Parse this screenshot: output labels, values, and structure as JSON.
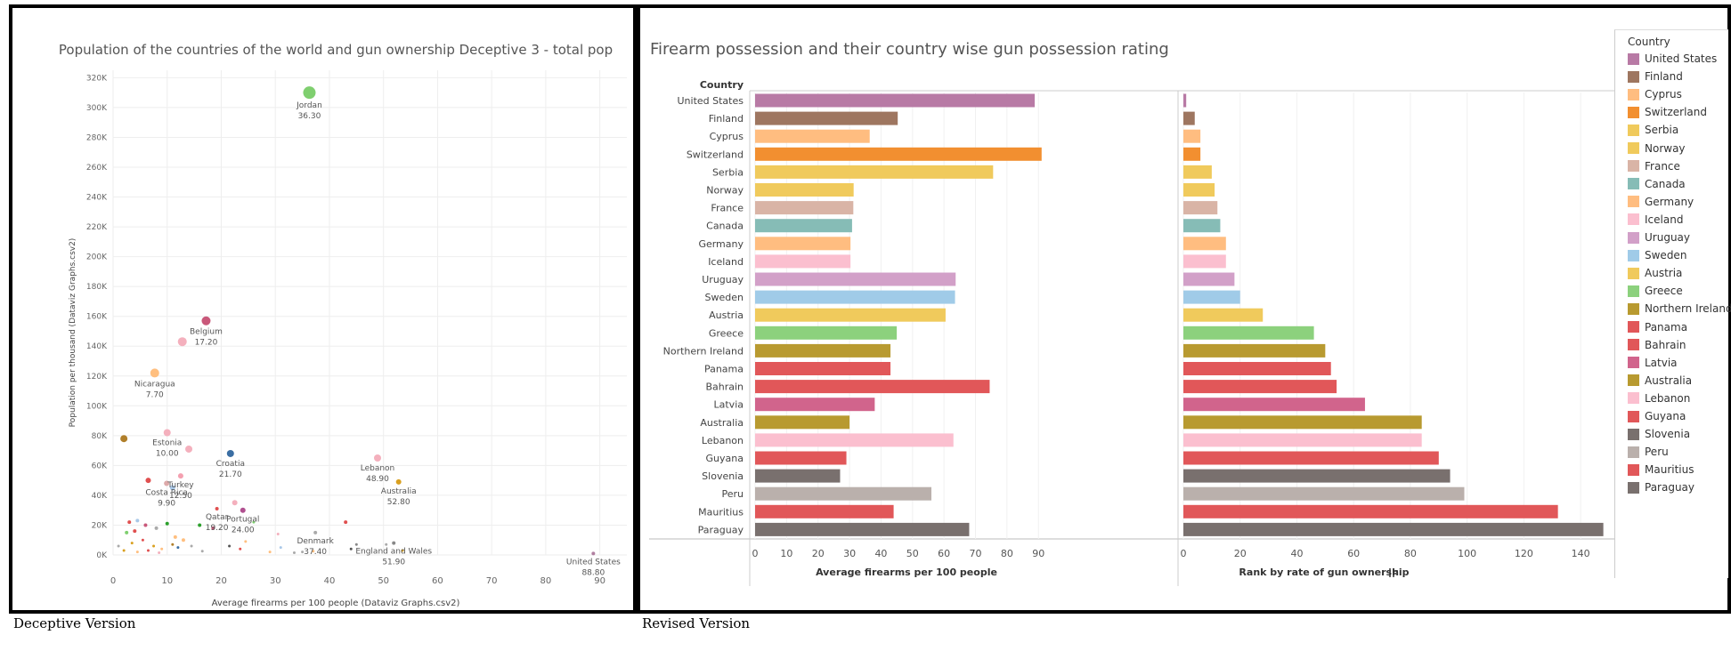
{
  "captions": {
    "left": "Deceptive Version",
    "right": "Revised Version"
  },
  "colors": {
    "grid": "#eeeeee",
    "axis_text": "#666666",
    "label_text": "#555555"
  },
  "chart_data": [
    {
      "type": "scatter",
      "title": "Population of the countries of the world and gun ownership Deceptive 3 - total pop",
      "xlabel": "Average firearms per 100 people (Dataviz Graphs.csv2)",
      "ylabel": "Population per thousand (Dataviz Graphs.csv2)",
      "xlim": [
        0,
        95
      ],
      "ylim": [
        0,
        325000
      ],
      "x_ticks": [
        0,
        10,
        20,
        30,
        40,
        50,
        60,
        70,
        80,
        90
      ],
      "x_tick_labels": [
        "0",
        "10",
        "20",
        "30",
        "40",
        "50",
        "60",
        "70",
        "80",
        "90"
      ],
      "y_ticks": [
        0,
        20000,
        40000,
        60000,
        80000,
        100000,
        120000,
        140000,
        160000,
        180000,
        200000,
        220000,
        240000,
        260000,
        280000,
        300000,
        320000
      ],
      "y_tick_labels": [
        "0K",
        "20K",
        "40K",
        "60K",
        "80K",
        "100K",
        "120K",
        "140K",
        "160K",
        "180K",
        "200K",
        "220K",
        "240K",
        "260K",
        "280K",
        "300K",
        "320K"
      ],
      "grid": true,
      "points": [
        {
          "x": 36.3,
          "y": 310000,
          "r": 7,
          "color": "#7fcf6f",
          "label": "Jordan",
          "value": "36.30"
        },
        {
          "x": 17.2,
          "y": 157000,
          "r": 5,
          "color": "#c9587a",
          "label": "Belgium",
          "value": "17.20"
        },
        {
          "x": 12.8,
          "y": 143000,
          "r": 5,
          "color": "#f4b0bd"
        },
        {
          "x": 7.7,
          "y": 122000,
          "r": 5,
          "color": "#ffbf7f",
          "label": "Nicaragua",
          "value": "7.70"
        },
        {
          "x": 2.0,
          "y": 78000,
          "r": 4,
          "color": "#b07f2a"
        },
        {
          "x": 10.0,
          "y": 82000,
          "r": 4,
          "color": "#f4b0bd",
          "label": "Estonia",
          "value": "10.00"
        },
        {
          "x": 14.0,
          "y": 71000,
          "r": 4,
          "color": "#f4b0bd"
        },
        {
          "x": 12.5,
          "y": 53000,
          "r": 3,
          "color": "#f4a0b0",
          "label": "Turkey",
          "value": "12.50"
        },
        {
          "x": 21.7,
          "y": 68000,
          "r": 4,
          "color": "#3b6ea3",
          "label": "Croatia",
          "value": "21.70"
        },
        {
          "x": 6.5,
          "y": 50000,
          "r": 3,
          "color": "#e05050"
        },
        {
          "x": 9.9,
          "y": 48000,
          "r": 3,
          "color": "#ddaaaa",
          "label": "Costa Rica",
          "value": "9.90"
        },
        {
          "x": 11.0,
          "y": 45000,
          "r": 3,
          "color": "#a9c8e8"
        },
        {
          "x": 48.9,
          "y": 65000,
          "r": 4,
          "color": "#f4b0bd",
          "label": "Lebanon",
          "value": "48.90"
        },
        {
          "x": 52.8,
          "y": 49000,
          "r": 3,
          "color": "#d9a020",
          "label": "Australia",
          "value": "52.80"
        },
        {
          "x": 19.2,
          "y": 31000,
          "r": 2,
          "color": "#e05050",
          "label": "Qatar",
          "value": "19.20"
        },
        {
          "x": 24.0,
          "y": 30000,
          "r": 3,
          "color": "#b05090",
          "label": "Portugal",
          "value": "24.00"
        },
        {
          "x": 22.5,
          "y": 35000,
          "r": 3,
          "color": "#f4b0bd"
        },
        {
          "x": 37.4,
          "y": 15000,
          "r": 2,
          "color": "#aaaaaa",
          "label": "Denmark",
          "value": "37.40"
        },
        {
          "x": 51.9,
          "y": 8000,
          "r": 2,
          "color": "#888888",
          "label": "England and Wales",
          "value": "51.90"
        },
        {
          "x": 88.8,
          "y": 1000,
          "r": 2,
          "color": "#b07fa0",
          "label": "United States",
          "value": "88.80"
        },
        {
          "x": 3.0,
          "y": 22000,
          "r": 2,
          "color": "#e05050"
        },
        {
          "x": 4.5,
          "y": 23000,
          "r": 2,
          "color": "#a9c8e8"
        },
        {
          "x": 6.0,
          "y": 20000,
          "r": 2,
          "color": "#c9587a"
        },
        {
          "x": 2.5,
          "y": 15000,
          "r": 2,
          "color": "#7fcf6f"
        },
        {
          "x": 4.0,
          "y": 16000,
          "r": 2,
          "color": "#e05050"
        },
        {
          "x": 8.0,
          "y": 18000,
          "r": 2,
          "color": "#aaaaaa"
        },
        {
          "x": 10.0,
          "y": 21000,
          "r": 2,
          "color": "#2ca02c"
        },
        {
          "x": 11.5,
          "y": 12000,
          "r": 2,
          "color": "#ffbf7f"
        },
        {
          "x": 13.0,
          "y": 10000,
          "r": 2,
          "color": "#ffbf7f"
        },
        {
          "x": 16.0,
          "y": 20000,
          "r": 2,
          "color": "#2ca02c"
        },
        {
          "x": 18.5,
          "y": 18000,
          "r": 2,
          "color": "#c9587a"
        },
        {
          "x": 3.5,
          "y": 8000,
          "r": 1.5,
          "color": "#d9a020"
        },
        {
          "x": 5.5,
          "y": 10000,
          "r": 1.5,
          "color": "#e05050"
        },
        {
          "x": 7.5,
          "y": 6000,
          "r": 1.5,
          "color": "#d9a020"
        },
        {
          "x": 9.0,
          "y": 4000,
          "r": 1.5,
          "color": "#ffbf7f"
        },
        {
          "x": 11.0,
          "y": 7000,
          "r": 1.5,
          "color": "#b07f2a"
        },
        {
          "x": 12.0,
          "y": 5000,
          "r": 1.5,
          "color": "#3b6ea3"
        },
        {
          "x": 14.5,
          "y": 6000,
          "r": 1.5,
          "color": "#aaaaaa"
        },
        {
          "x": 1.0,
          "y": 6000,
          "r": 1.5,
          "color": "#aaaaaa"
        },
        {
          "x": 2.0,
          "y": 3000,
          "r": 1.5,
          "color": "#d9a020"
        },
        {
          "x": 4.5,
          "y": 2000,
          "r": 1.5,
          "color": "#ffbf7f"
        },
        {
          "x": 6.5,
          "y": 3000,
          "r": 1.5,
          "color": "#e05050"
        },
        {
          "x": 8.5,
          "y": 1500,
          "r": 1.5,
          "color": "#f4b0bd"
        },
        {
          "x": 16.5,
          "y": 2500,
          "r": 1.5,
          "color": "#aaaaaa"
        },
        {
          "x": 21.5,
          "y": 6000,
          "r": 1.5,
          "color": "#555555"
        },
        {
          "x": 23.5,
          "y": 4000,
          "r": 1.5,
          "color": "#e05050"
        },
        {
          "x": 24.5,
          "y": 9000,
          "r": 1.5,
          "color": "#ffbf7f"
        },
        {
          "x": 29.0,
          "y": 2000,
          "r": 1.5,
          "color": "#ffbf7f"
        },
        {
          "x": 30.5,
          "y": 14000,
          "r": 1.5,
          "color": "#f4b0bd"
        },
        {
          "x": 31.0,
          "y": 5000,
          "r": 1.5,
          "color": "#a9c8e8"
        },
        {
          "x": 33.5,
          "y": 1500,
          "r": 1.5,
          "color": "#aaaaaa"
        },
        {
          "x": 35.0,
          "y": 2000,
          "r": 1.5,
          "color": "#aaaaaa"
        },
        {
          "x": 37.0,
          "y": 2500,
          "r": 1.5,
          "color": "#ffbf7f"
        },
        {
          "x": 43.0,
          "y": 22000,
          "r": 2,
          "color": "#e05050"
        },
        {
          "x": 44.0,
          "y": 4000,
          "r": 1.5,
          "color": "#555555"
        },
        {
          "x": 45.0,
          "y": 7000,
          "r": 1.5,
          "color": "#888888"
        },
        {
          "x": 50.5,
          "y": 7000,
          "r": 1.5,
          "color": "#aaaaaa"
        },
        {
          "x": 53.5,
          "y": 3000,
          "r": 1.5,
          "color": "#d9a020"
        },
        {
          "x": 26.0,
          "y": 22000,
          "r": 1.5,
          "color": "#7fcf6f"
        }
      ]
    },
    {
      "type": "bar",
      "orientation": "horizontal",
      "title": "Firearm possession and their country wise gun possession rating",
      "category_header": "Country",
      "categories": [
        "United States",
        "Finland",
        "Cyprus",
        "Switzerland",
        "Serbia",
        "Norway",
        "France",
        "Canada",
        "Germany",
        "Iceland",
        "Uruguay",
        "Sweden",
        "Austria",
        "Greece",
        "Northern Ireland",
        "Panama",
        "Bahrain",
        "Latvia",
        "Australia",
        "Lebanon",
        "Guyana",
        "Slovenia",
        "Peru",
        "Mauritius",
        "Paraguay"
      ],
      "colors": [
        "#b87aa5",
        "#9e7660",
        "#ffbd80",
        "#f28f30",
        "#f0ca5c",
        "#f0ca5c",
        "#d9b4a6",
        "#86bcb6",
        "#ffbd80",
        "#fbbfcf",
        "#d2a0c8",
        "#a0cbe8",
        "#f0ca5c",
        "#8cd17d",
        "#b89a30",
        "#e15759",
        "#e15759",
        "#d1648c",
        "#b89a30",
        "#fbbfcf",
        "#e15759",
        "#79706e",
        "#bab0ac",
        "#e15759",
        "#79706e"
      ],
      "series": [
        {
          "axis_label": "Average firearms per 100 people",
          "xlim": [
            0,
            97
          ],
          "ticks": [
            0,
            10,
            20,
            30,
            40,
            50,
            60,
            70,
            80,
            90
          ],
          "tick_labels": [
            "0",
            "10",
            "20",
            "30",
            "40",
            "50",
            "60",
            "70",
            "80",
            "90"
          ],
          "values": [
            88.8,
            45.3,
            36.4,
            91.0,
            75.6,
            31.3,
            31.2,
            30.8,
            30.3,
            30.3,
            63.7,
            63.5,
            60.5,
            45.0,
            43.0,
            43.0,
            74.5,
            38.0,
            30.0,
            63.0,
            29.0,
            27.0,
            56.0,
            44.0,
            68.0
          ]
        },
        {
          "axis_label": "Rank by rate of gun ownership",
          "xlim": [
            0,
            150
          ],
          "ticks": [
            0,
            20,
            40,
            60,
            80,
            100,
            120,
            140
          ],
          "tick_labels": [
            "0",
            "20",
            "40",
            "60",
            "80",
            "100",
            "120",
            "140"
          ],
          "values": [
            1,
            4,
            6,
            6,
            10,
            11,
            12,
            13,
            15,
            15,
            18,
            20,
            28,
            46,
            50,
            52,
            54,
            64,
            84,
            84,
            90,
            94,
            99,
            132,
            148
          ]
        }
      ],
      "legend": {
        "title": "Country",
        "placement": "right"
      }
    }
  ]
}
